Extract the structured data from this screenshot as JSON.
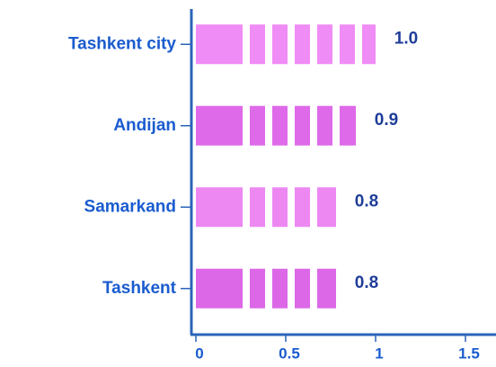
{
  "chart_data": {
    "type": "bar",
    "orientation": "horizontal",
    "categories": [
      "Tashkent city",
      "Andijan",
      "Samarkand",
      "Tashkent"
    ],
    "values": [
      1.0,
      0.89,
      0.78,
      0.78
    ],
    "value_labels": [
      "1.0",
      "0.9",
      "0.8",
      "0.8"
    ],
    "colors": [
      "#f08cf5",
      "#de6ae9",
      "#ed88f3",
      "#dc68e8"
    ],
    "xlim": [
      0,
      1.67
    ],
    "xticks": [
      0,
      0.5,
      1,
      1.5
    ]
  }
}
